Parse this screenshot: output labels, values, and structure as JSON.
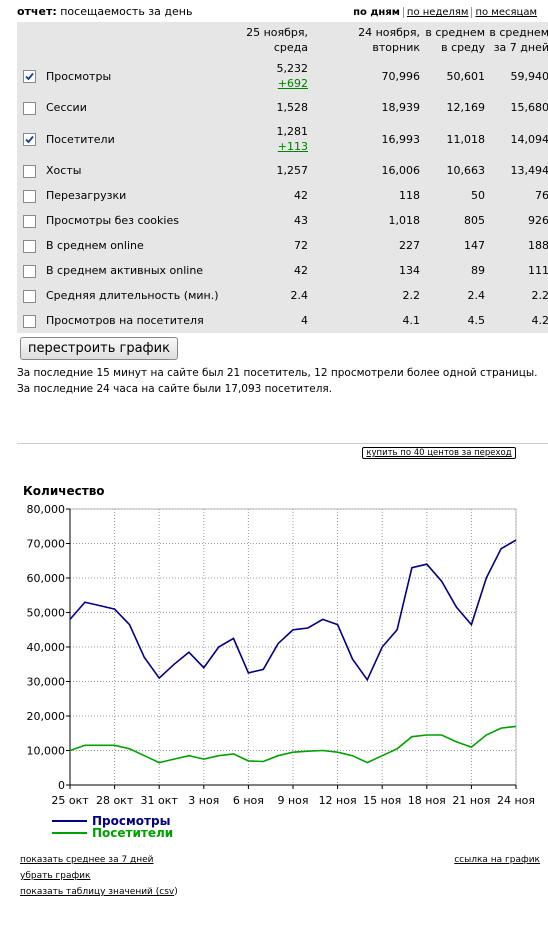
{
  "header": {
    "prefix": "отчет:",
    "title": "посещаемость за день",
    "tabs": [
      "по дням",
      "по неделям",
      "по месяцам"
    ],
    "active_tab": 0
  },
  "table": {
    "columns": [
      "25 ноября, среда",
      "24 ноября, вторник",
      "в среднем в среду",
      "в среднем за 7 дней"
    ],
    "rows": [
      {
        "checked": true,
        "label": "Просмотры",
        "values": [
          "5,232",
          "70,996",
          "50,601",
          "59,940"
        ],
        "delta": "+692"
      },
      {
        "checked": false,
        "label": "Сессии",
        "values": [
          "1,528",
          "18,939",
          "12,169",
          "15,680"
        ]
      },
      {
        "checked": true,
        "label": "Посетители",
        "values": [
          "1,281",
          "16,993",
          "11,018",
          "14,094"
        ],
        "delta": "+113"
      },
      {
        "checked": false,
        "label": "Хосты",
        "values": [
          "1,257",
          "16,006",
          "10,663",
          "13,494"
        ]
      },
      {
        "checked": false,
        "label": "Перезагрузки",
        "values": [
          "42",
          "118",
          "50",
          "76"
        ]
      },
      {
        "checked": false,
        "label": "Просмотры без cookies",
        "values": [
          "43",
          "1,018",
          "805",
          "926"
        ]
      },
      {
        "checked": false,
        "label": "В среднем online",
        "values": [
          "72",
          "227",
          "147",
          "188"
        ]
      },
      {
        "checked": false,
        "label": "В среднем активных online",
        "values": [
          "42",
          "134",
          "89",
          "111"
        ]
      },
      {
        "checked": false,
        "label": "Средняя длительность (мин.)",
        "values": [
          "2.4",
          "2.2",
          "2.4",
          "2.2"
        ]
      },
      {
        "checked": false,
        "label": "Просмотров на посетителя",
        "values": [
          "4",
          "4.1",
          "4.5",
          "4.2"
        ]
      }
    ]
  },
  "button": "перестроить график",
  "notes": [
    "За последние 15 минут на сайте был 21 посетитель, 12 просмотрели более одной страницы.",
    "За последние 24 часа на сайте были 17,093 посетителя."
  ],
  "buy_button": "купить по 40 центов за переход",
  "chart_data": {
    "type": "line",
    "title": "Количество",
    "categories": [
      "25 окт",
      null,
      null,
      "28 окт",
      null,
      null,
      "31 окт",
      null,
      null,
      "3 ноя",
      null,
      null,
      "6 ноя",
      null,
      null,
      "9 ноя",
      null,
      null,
      "12 ноя",
      null,
      null,
      "15 ноя",
      null,
      null,
      "18 ноя",
      null,
      null,
      "21 ноя",
      null,
      null,
      "24 ноя"
    ],
    "series": [
      {
        "name": "Просмотры",
        "color": "#000080",
        "values": [
          48000,
          53000,
          52000,
          51000,
          46500,
          37000,
          31000,
          35000,
          38500,
          34000,
          40000,
          42500,
          32500,
          33500,
          41000,
          45000,
          45500,
          48000,
          46500,
          36500,
          30500,
          40000,
          45000,
          63000,
          64000,
          59000,
          51500,
          46500,
          60000,
          68500,
          71000
        ]
      },
      {
        "name": "Посетители",
        "color": "#00a000",
        "values": [
          10000,
          11500,
          11500,
          11500,
          10500,
          8500,
          6500,
          7500,
          8500,
          7500,
          8500,
          9000,
          7000,
          6800,
          8500,
          9500,
          9800,
          10000,
          9500,
          8500,
          6500,
          8500,
          10500,
          14000,
          14500,
          14500,
          12500,
          11000,
          14500,
          16500,
          17000
        ]
      }
    ],
    "ylim": [
      0,
      80000
    ],
    "yticks": [
      0,
      {
        "value": 10000,
        "label": "10,000"
      },
      {
        "value": 20000,
        "label": "20,000"
      },
      {
        "value": 30000,
        "label": "30,000"
      },
      {
        "value": 40000,
        "label": "40,000"
      },
      {
        "value": 50000,
        "label": "50,000"
      },
      {
        "value": 60000,
        "label": "60,000"
      },
      {
        "value": 70000,
        "label": "70,000"
      },
      {
        "value": 80000,
        "label": "80,000"
      }
    ],
    "grid": true
  },
  "links": {
    "avg": "показать среднее за 7 дней",
    "remove": "убрать график",
    "table_prefix": "показать таблицу значений (",
    "csv": "csv",
    "table_suffix": ")",
    "chart_link": "ссылка на график"
  }
}
